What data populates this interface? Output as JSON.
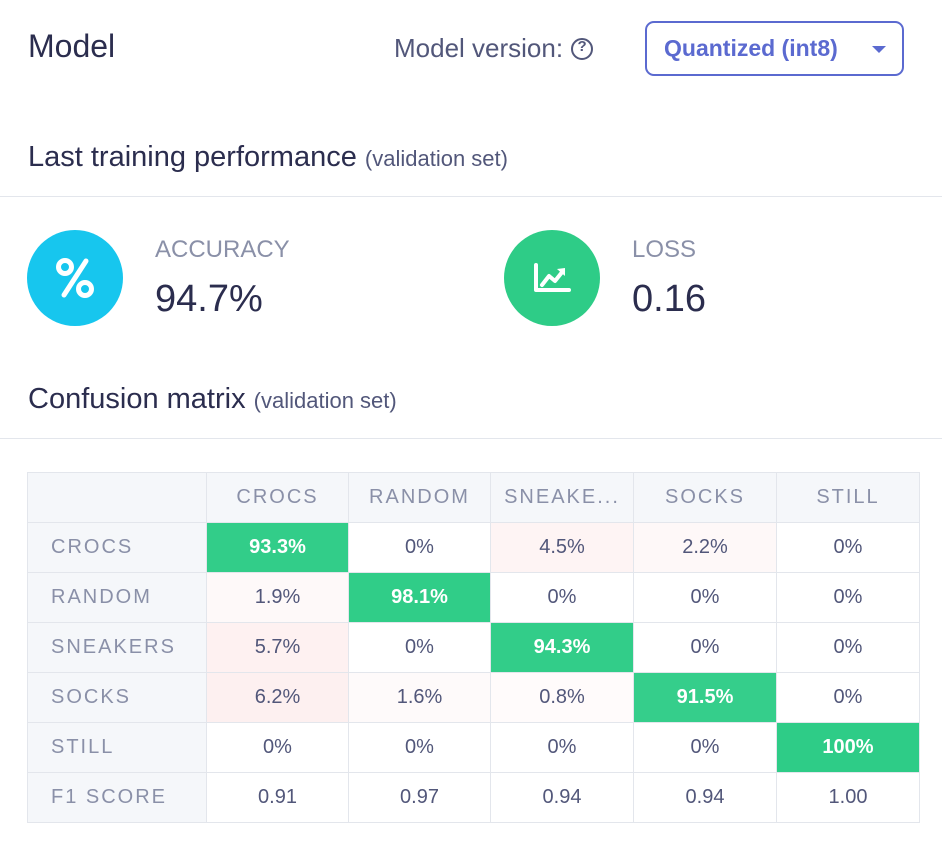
{
  "header": {
    "title": "Model",
    "version_label": "Model version:",
    "help_glyph": "?",
    "version_selected": "Quantized (int8)"
  },
  "performance": {
    "title": "Last training performance",
    "subtitle": "(validation set)",
    "accuracy": {
      "label": "ACCURACY",
      "value": "94.7%",
      "icon": "percent-icon",
      "color": "#17c6ee"
    },
    "loss": {
      "label": "LOSS",
      "value": "0.16",
      "icon": "chart-trend-icon",
      "color": "#2ecc87"
    }
  },
  "confusion": {
    "title": "Confusion matrix",
    "subtitle": "(validation set)",
    "columns": [
      "CROCS",
      "RANDOM",
      "SNEAKE...",
      "SOCKS",
      "STILL"
    ],
    "rows": [
      {
        "label": "CROCS",
        "cells": [
          "93.3%",
          "0%",
          "4.5%",
          "2.2%",
          "0%"
        ]
      },
      {
        "label": "RANDOM",
        "cells": [
          "1.9%",
          "98.1%",
          "0%",
          "0%",
          "0%"
        ]
      },
      {
        "label": "SNEAKERS",
        "cells": [
          "5.7%",
          "0%",
          "94.3%",
          "0%",
          "0%"
        ]
      },
      {
        "label": "SOCKS",
        "cells": [
          "6.2%",
          "1.6%",
          "0.8%",
          "91.5%",
          "0%"
        ]
      },
      {
        "label": "STILL",
        "cells": [
          "0%",
          "0%",
          "0%",
          "0%",
          "100%"
        ]
      }
    ],
    "f1": {
      "label": "F1 SCORE",
      "cells": [
        "0.91",
        "0.97",
        "0.94",
        "0.94",
        "1.00"
      ]
    },
    "colors": {
      "correct": "#2ecc87",
      "error": "#f06e6e"
    }
  }
}
